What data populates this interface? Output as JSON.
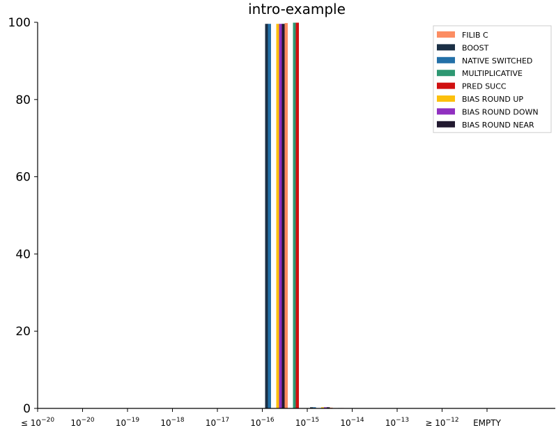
{
  "chart_data": {
    "type": "bar",
    "title": "intro-example",
    "xlabel": "",
    "ylabel": "",
    "ylim": [
      0,
      100
    ],
    "yticks": [
      "0",
      "20",
      "40",
      "60",
      "80",
      "100"
    ],
    "categories": [
      {
        "prefix": "≤ 10",
        "exp": "−20"
      },
      {
        "prefix": "10",
        "exp": "−20"
      },
      {
        "prefix": "10",
        "exp": "−19"
      },
      {
        "prefix": "10",
        "exp": "−18"
      },
      {
        "prefix": "10",
        "exp": "−17"
      },
      {
        "prefix": "10",
        "exp": "−16"
      },
      {
        "prefix": "10",
        "exp": "−15"
      },
      {
        "prefix": "10",
        "exp": "−14"
      },
      {
        "prefix": "10",
        "exp": "−13"
      },
      {
        "prefix": "≥ 10",
        "exp": "−12"
      },
      {
        "prefix": "EMPTY",
        "exp": ""
      }
    ],
    "legend_position": "top-right",
    "series": [
      {
        "name": "FILIB C",
        "color": "#fc8d62",
        "values": [
          0,
          0,
          0,
          0,
          0,
          99.8,
          0.2,
          0,
          0,
          0,
          0
        ]
      },
      {
        "name": "BOOST",
        "color": "#1b2f45",
        "values": [
          0,
          0,
          0,
          0,
          0,
          99.6,
          0.3,
          0,
          0,
          0,
          0
        ]
      },
      {
        "name": "NATIVE SWITCHED",
        "color": "#2370a8",
        "values": [
          0,
          0,
          0,
          0,
          0,
          99.6,
          0.3,
          0,
          0,
          0,
          0
        ]
      },
      {
        "name": "MULTIPLICATIVE",
        "color": "#2e9872",
        "values": [
          0,
          0,
          0,
          0,
          0,
          99.9,
          0.1,
          0,
          0,
          0,
          0
        ]
      },
      {
        "name": "PRED SUCC",
        "color": "#d01010",
        "values": [
          0,
          0,
          0,
          0,
          0,
          99.9,
          0.1,
          0,
          0,
          0,
          0
        ]
      },
      {
        "name": "BIAS ROUND UP",
        "color": "#fcc00c",
        "values": [
          0,
          0,
          0,
          0,
          0,
          99.6,
          0.3,
          0,
          0,
          0,
          0
        ]
      },
      {
        "name": "BIAS ROUND DOWN",
        "color": "#9030c0",
        "values": [
          0,
          0,
          0,
          0,
          0,
          99.6,
          0.3,
          0,
          0,
          0,
          0
        ]
      },
      {
        "name": "BIAS ROUND NEAR",
        "color": "#221a30",
        "values": [
          0,
          0,
          0,
          0,
          0,
          99.6,
          0.3,
          0,
          0,
          0,
          0
        ]
      }
    ],
    "draw_order": [
      1,
      2,
      5,
      6,
      7,
      0,
      3,
      4
    ]
  }
}
